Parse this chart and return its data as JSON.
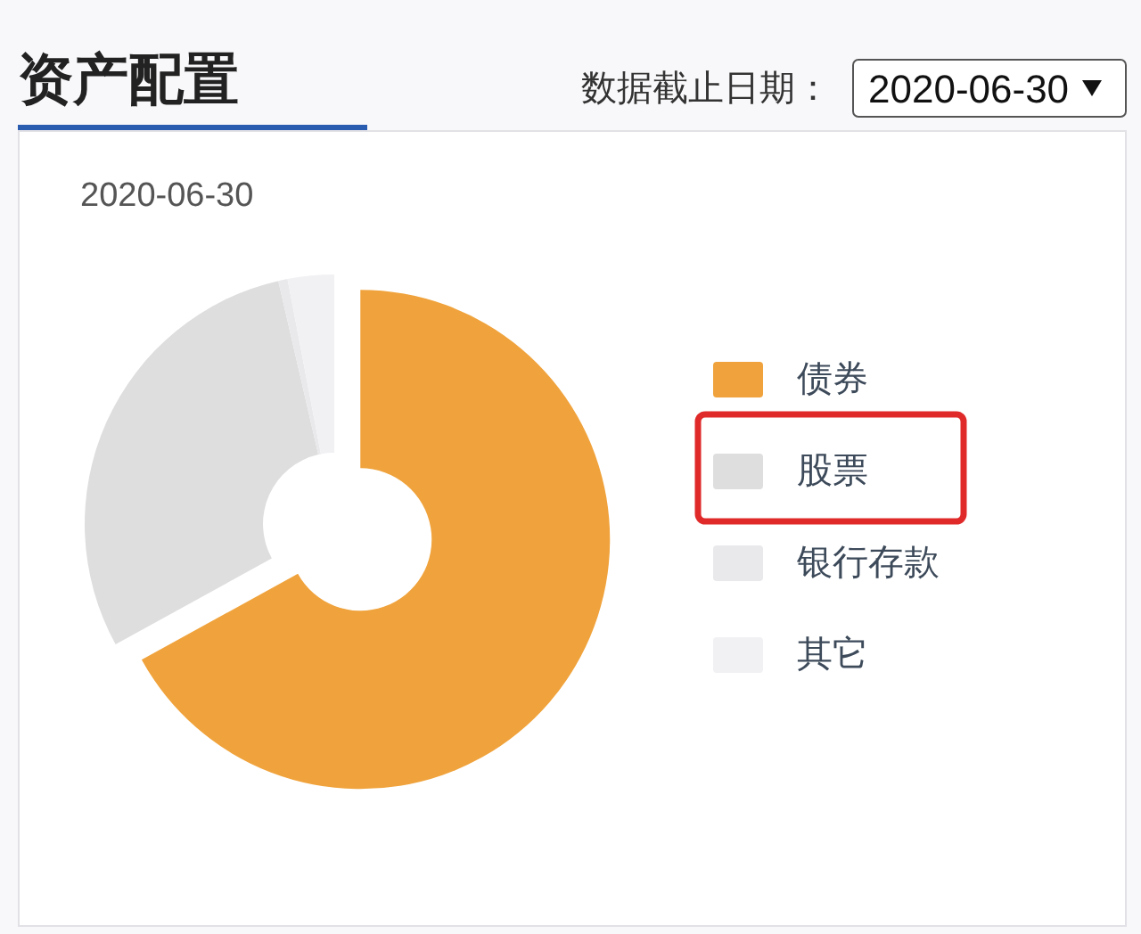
{
  "chart_data": {
    "type": "donut",
    "title": "资产配置",
    "subtitle": "2020-06-30",
    "annotations": [
      "数据截止日期：",
      "2020-06-30"
    ],
    "categories": [
      "债券",
      "股票",
      "银行存款",
      "其它"
    ],
    "values": [
      67,
      29.4,
      0.6,
      3
    ],
    "colors": [
      "#f0a33c",
      "#dedede",
      "#e9e9ec",
      "#f1f1f4"
    ],
    "legend": "right"
  }
}
